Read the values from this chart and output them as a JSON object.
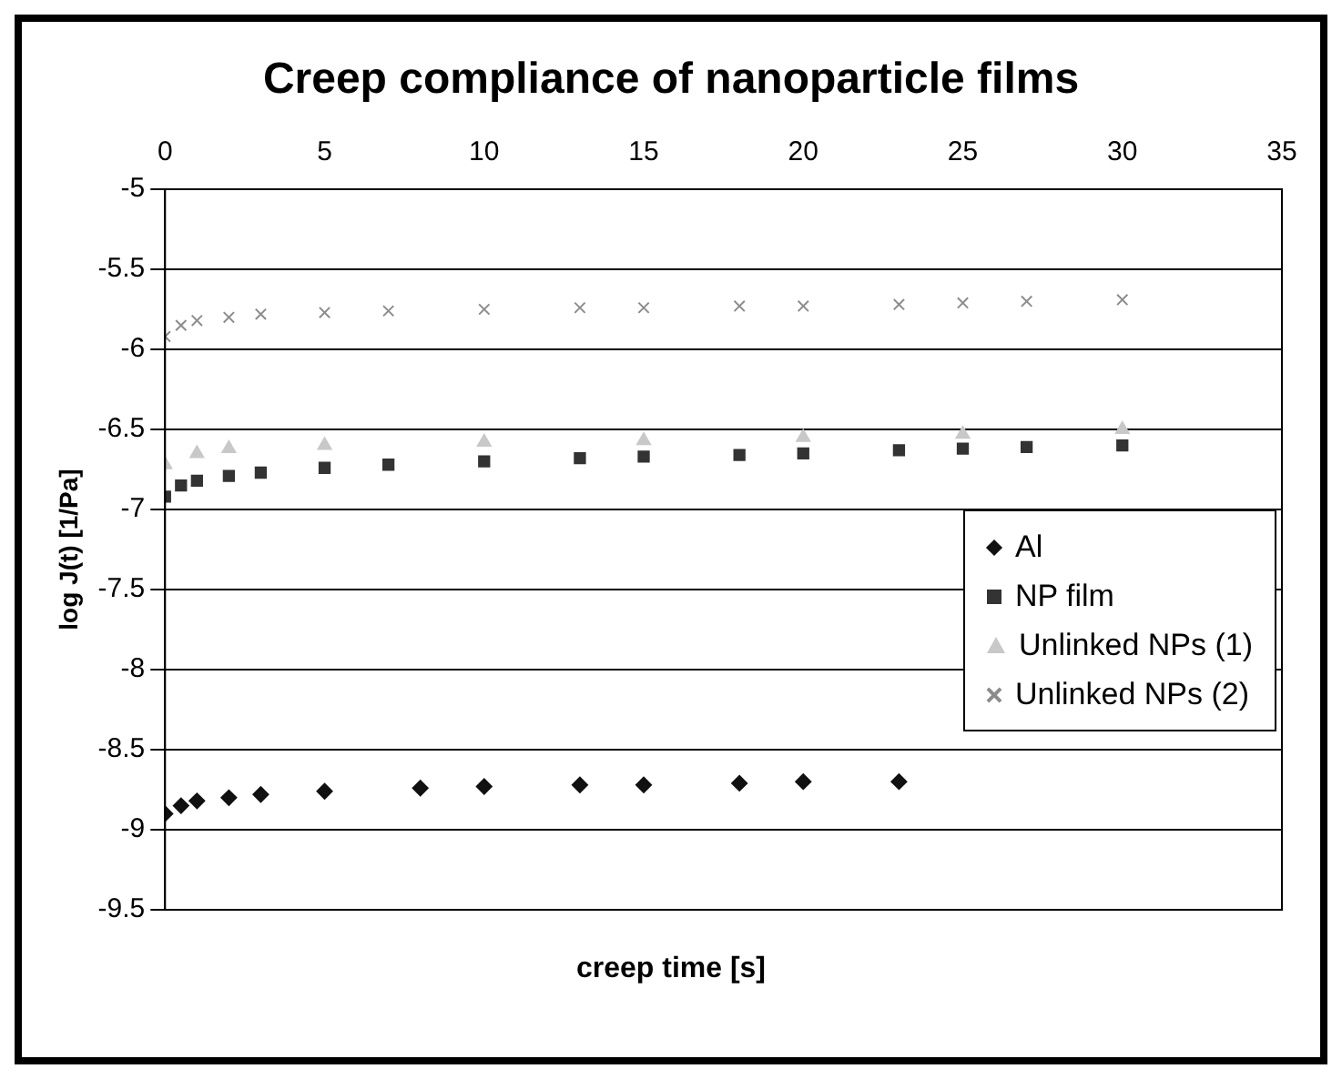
{
  "chart_data": {
    "type": "scatter",
    "title": "Creep compliance of nanoparticle films",
    "xlabel": "creep time [s]",
    "ylabel": "log J(t) [1/Pa]",
    "xlim": [
      0,
      35
    ],
    "xticks": [
      0,
      5,
      10,
      15,
      20,
      25,
      30,
      35
    ],
    "ylim": [
      -9.5,
      -5
    ],
    "yticks": [
      -9.5,
      -9,
      -8.5,
      -8,
      -7.5,
      -7,
      -6.5,
      -6,
      -5.5,
      -5
    ],
    "grid": "y",
    "legend": "right",
    "series": [
      {
        "name": "Al",
        "color": "#111111",
        "marker": "diamond",
        "x": [
          0,
          0.5,
          1,
          2,
          3,
          5,
          8,
          10,
          13,
          15,
          18,
          20,
          23
        ],
        "values": [
          -8.9,
          -8.85,
          -8.82,
          -8.8,
          -8.78,
          -8.76,
          -8.74,
          -8.73,
          -8.72,
          -8.72,
          -8.71,
          -8.7,
          -8.7
        ]
      },
      {
        "name": "NP film",
        "color": "#333333",
        "marker": "square",
        "x": [
          0,
          0.5,
          1,
          2,
          3,
          5,
          7,
          10,
          13,
          15,
          18,
          20,
          23,
          25,
          27,
          30
        ],
        "values": [
          -6.92,
          -6.85,
          -6.82,
          -6.79,
          -6.77,
          -6.74,
          -6.72,
          -6.7,
          -6.68,
          -6.67,
          -6.66,
          -6.65,
          -6.63,
          -6.62,
          -6.61,
          -6.6
        ]
      },
      {
        "name": "Unlinked NPs (1)",
        "color": "#c8c8c8",
        "marker": "triangle",
        "x": [
          0,
          1,
          2,
          5,
          10,
          15,
          20,
          25,
          30
        ],
        "values": [
          -6.72,
          -6.65,
          -6.62,
          -6.6,
          -6.58,
          -6.57,
          -6.55,
          -6.53,
          -6.5
        ]
      },
      {
        "name": "Unlinked NPs (2)",
        "color": "#8c8c8c",
        "marker": "cross",
        "x": [
          0,
          0.5,
          1,
          2,
          3,
          5,
          7,
          10,
          13,
          15,
          18,
          20,
          23,
          25,
          27,
          30
        ],
        "values": [
          -5.92,
          -5.85,
          -5.82,
          -5.8,
          -5.78,
          -5.77,
          -5.76,
          -5.75,
          -5.74,
          -5.74,
          -5.73,
          -5.73,
          -5.72,
          -5.71,
          -5.7,
          -5.69
        ]
      }
    ]
  }
}
